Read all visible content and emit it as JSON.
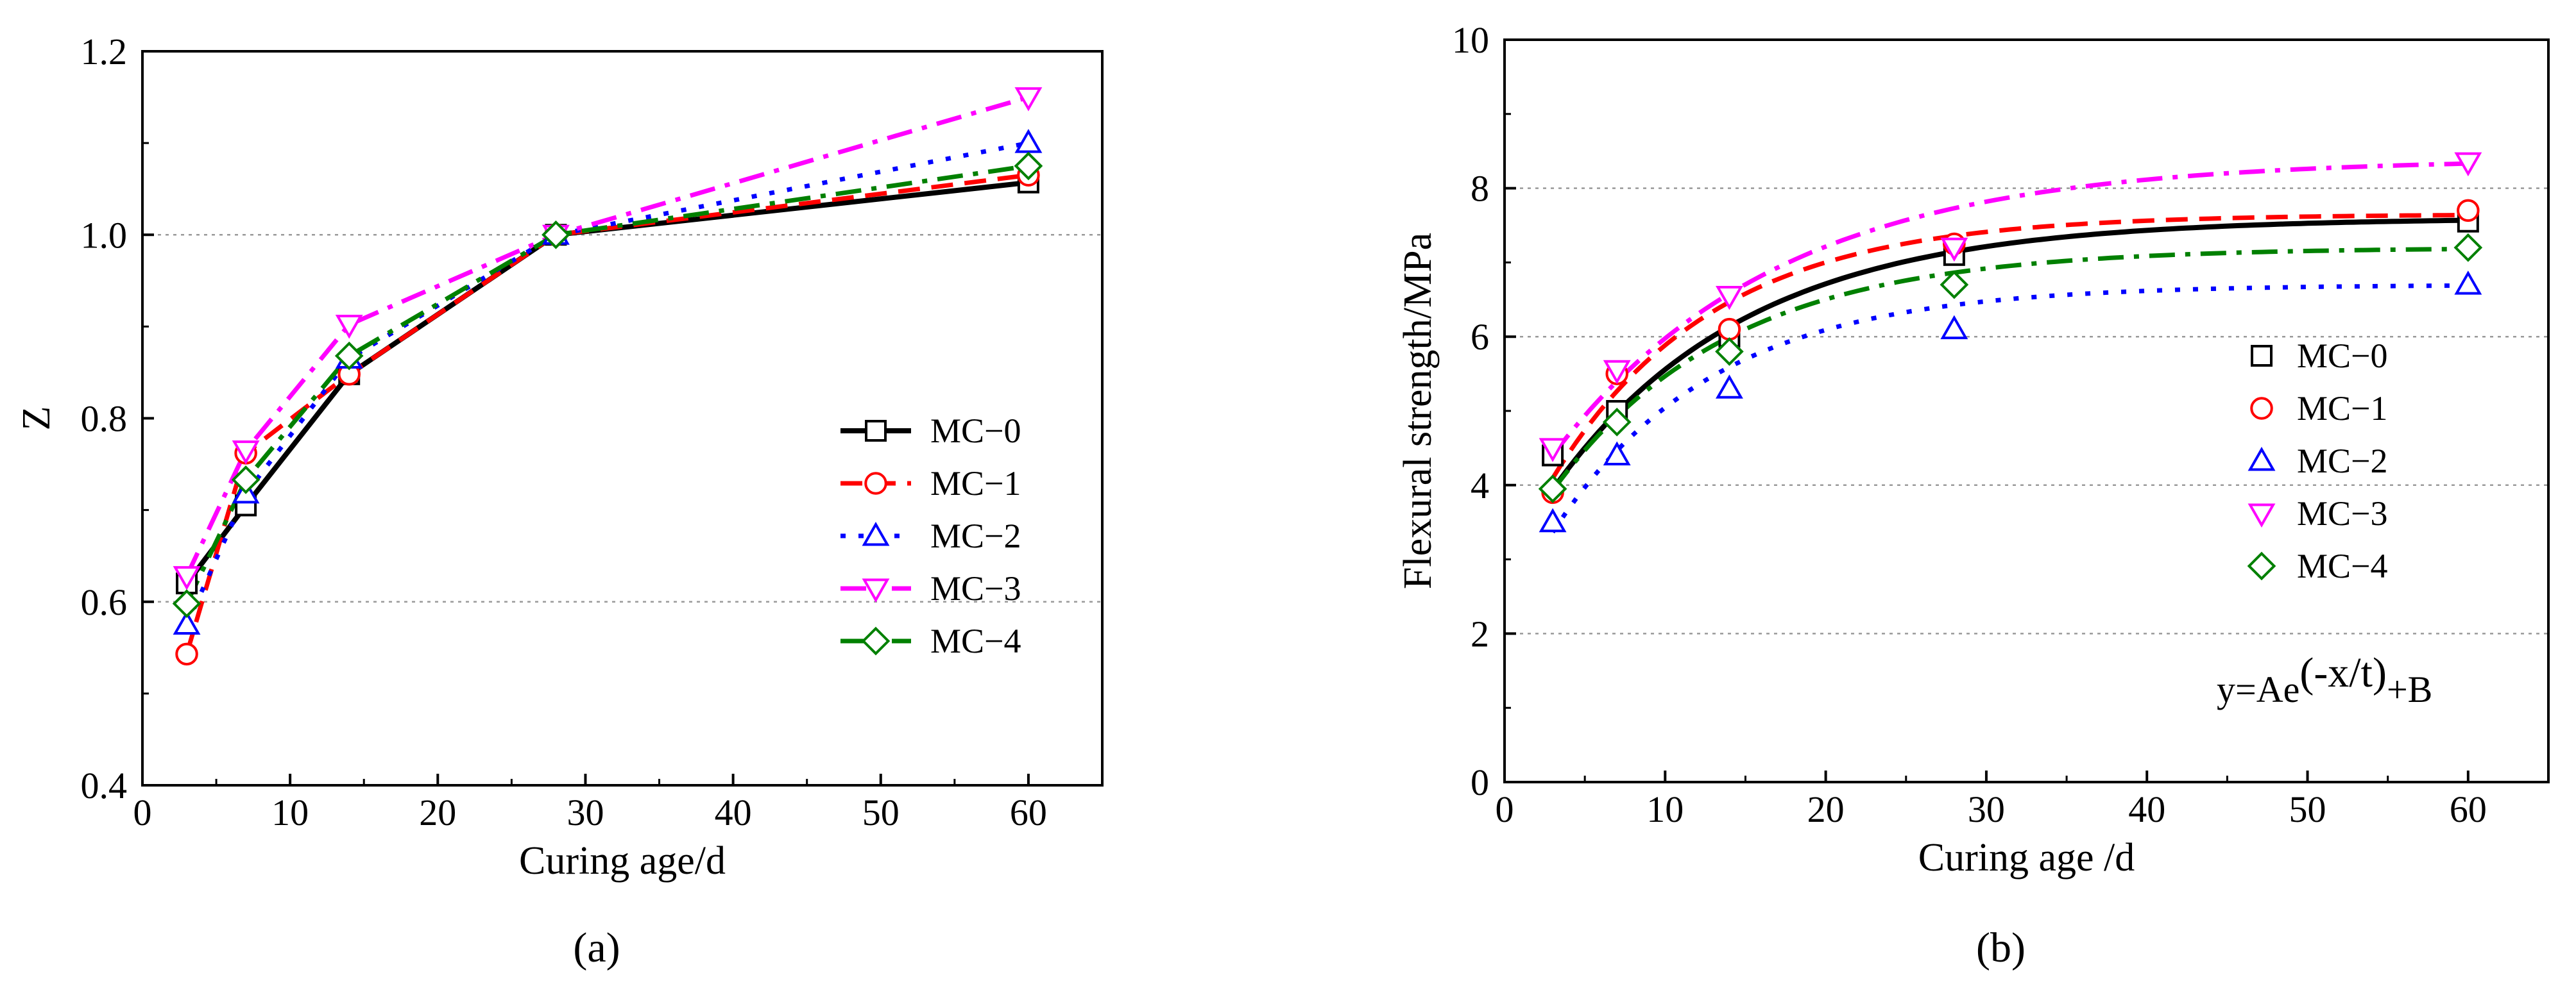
{
  "chart_data": [
    {
      "type": "line",
      "panel_label": "(a)",
      "xlabel": "Curing age/d",
      "ylabel": "Z",
      "xlim": [
        0,
        65
      ],
      "ylim": [
        0.4,
        1.2
      ],
      "xticks": [
        "0",
        "10",
        "20",
        "30",
        "40",
        "50",
        "60"
      ],
      "yticks": [
        "0.4",
        "0.6",
        "0.8",
        "1.0",
        "1.2"
      ],
      "gridlines_y": [
        0.6,
        1.0
      ],
      "legend_position": "center-right",
      "x": [
        3,
        7,
        14,
        28,
        60
      ],
      "series": [
        {
          "name": "MC−0",
          "marker": "square",
          "line": "solid",
          "color": "#000000",
          "values": [
            0.62,
            0.705,
            0.848,
            1.0,
            1.057
          ]
        },
        {
          "name": "MC−1",
          "marker": "circle",
          "line": "dash",
          "color": "#ff0000",
          "values": [
            0.543,
            0.762,
            0.848,
            1.0,
            1.065
          ]
        },
        {
          "name": "MC−2",
          "marker": "triangle-up",
          "line": "dot",
          "color": "#0000ff",
          "values": [
            0.575,
            0.718,
            0.865,
            1.0,
            1.1
          ]
        },
        {
          "name": "MC−3",
          "marker": "triangle-down",
          "line": "dashdot",
          "color": "#ff00ff",
          "values": [
            0.628,
            0.765,
            0.902,
            1.0,
            1.15
          ]
        },
        {
          "name": "MC−4",
          "marker": "diamond",
          "line": "dashdot",
          "color": "#008000",
          "values": [
            0.598,
            0.733,
            0.868,
            1.0,
            1.075
          ]
        }
      ]
    },
    {
      "type": "scatter",
      "panel_label": "(b)",
      "xlabel": "Curing age /d",
      "ylabel": "Flexural strength/MPa",
      "xlim": [
        0,
        65
      ],
      "ylim": [
        0,
        10
      ],
      "xticks": [
        "0",
        "10",
        "20",
        "30",
        "40",
        "50",
        "60"
      ],
      "yticks": [
        "0",
        "2",
        "4",
        "6",
        "8",
        "10"
      ],
      "gridlines_y": [
        2,
        4,
        6,
        8
      ],
      "legend_position": "right",
      "annotation": {
        "base": "y=Ae",
        "superscript": "(-x/t)",
        "suffix": "+B"
      },
      "fit_model": "y = A*exp(-x/t) + B",
      "x": [
        3,
        7,
        14,
        28,
        60
      ],
      "series": [
        {
          "name": "MC−0",
          "marker": "square",
          "line": "solid",
          "color": "#000000",
          "values": [
            4.4,
            5.0,
            6.0,
            7.1,
            7.55
          ],
          "fit": {
            "A": -4.7,
            "t": 12,
            "B": 7.6
          }
        },
        {
          "name": "MC−1",
          "marker": "circle",
          "line": "dash",
          "color": "#ff0000",
          "values": [
            3.9,
            5.5,
            6.1,
            7.25,
            7.7
          ],
          "fit": {
            "A": -4.8,
            "t": 10,
            "B": 7.65
          }
        },
        {
          "name": "MC−2",
          "marker": "triangle-up",
          "line": "dot",
          "color": "#0000ff",
          "values": [
            3.5,
            4.4,
            5.3,
            6.1,
            6.7
          ],
          "fit": {
            "A": -4.5,
            "t": 10,
            "B": 6.7
          }
        },
        {
          "name": "MC−3",
          "marker": "triangle-down",
          "line": "dashdot",
          "color": "#ff00ff",
          "values": [
            4.5,
            5.55,
            6.55,
            7.2,
            8.35
          ],
          "fit": {
            "A": -4.95,
            "t": 14,
            "B": 8.4
          }
        },
        {
          "name": "MC−4",
          "marker": "diamond",
          "line": "dashdot",
          "color": "#008000",
          "values": [
            3.95,
            4.85,
            5.8,
            6.7,
            7.2
          ],
          "fit": {
            "A": -4.3,
            "t": 11,
            "B": 7.2
          }
        }
      ]
    }
  ]
}
